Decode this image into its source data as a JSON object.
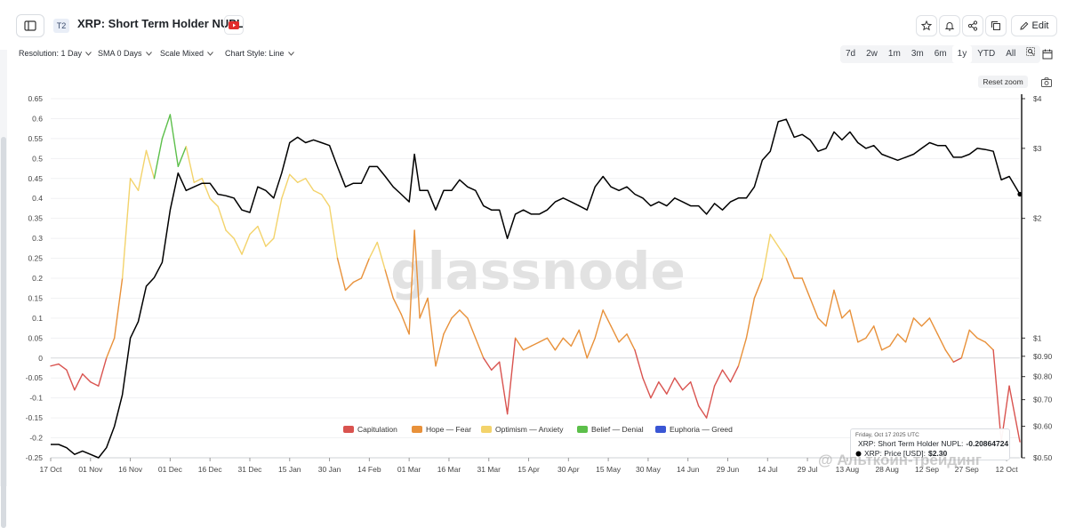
{
  "header": {
    "badge": "T2",
    "title": "XRP: Short Term Holder NUPL",
    "edit_label": "Edit"
  },
  "controls": {
    "resolution": "Resolution: 1 Day",
    "sma": "SMA 0 Days",
    "scale": "Scale Mixed",
    "chart_style": "Chart Style: Line"
  },
  "ranges": [
    "7d",
    "2w",
    "1m",
    "3m",
    "6m",
    "1y",
    "YTD",
    "All"
  ],
  "active_range": "1y",
  "reset_zoom": "Reset zoom",
  "watermark": "glassnode",
  "tooltip": {
    "date": "Friday, Oct 17 2025 UTC",
    "nupl_label": "XRP: Short Term Holder NUPL:",
    "nupl_value": "-0.20864724",
    "price_label": "XRP: Price [USD]:",
    "price_value": "$2.30"
  },
  "corner_watermark": "@ Альткоин-трейдинг",
  "colors": {
    "capitulation": "#d9534f",
    "hope_fear": "#e8913a",
    "optimism_anxiety": "#f3d36b",
    "belief_denial": "#5cbf4a",
    "euphoria_greed": "#3a56d4",
    "price": "#000000"
  },
  "chart_data": {
    "type": "line",
    "left_axis": {
      "min": -0.25,
      "max": 0.65,
      "ticks": [
        "0.65",
        "0.6",
        "0.55",
        "0.5",
        "0.45",
        "0.4",
        "0.35",
        "0.3",
        "0.25",
        "0.2",
        "0.15",
        "0.1",
        "0.05",
        "0",
        "-0.05",
        "-0.1",
        "-0.15",
        "-0.2",
        "-0.25"
      ]
    },
    "right_axis": {
      "scale": "log",
      "ticks": [
        "$4",
        "$3",
        "$2",
        "$1",
        "$0.90",
        "$0.80",
        "$0.70",
        "$0.60",
        "$0.50"
      ]
    },
    "x_ticks": [
      "17 Oct",
      "01 Nov",
      "16 Nov",
      "01 Dec",
      "16 Dec",
      "31 Dec",
      "15 Jan",
      "30 Jan",
      "14 Feb",
      "01 Mar",
      "16 Mar",
      "31 Mar",
      "15 Apr",
      "30 Apr",
      "15 May",
      "30 May",
      "14 Jun",
      "29 Jun",
      "14 Jul",
      "29 Jul",
      "13 Aug",
      "28 Aug",
      "12 Sep",
      "27 Sep",
      "12 Oct"
    ],
    "legend": [
      "Capitulation",
      "Hope — Fear",
      "Optimism — Anxiety",
      "Belief — Denial",
      "Euphoria — Greed"
    ],
    "series": [
      {
        "name": "XRP: Short Term Holder NUPL",
        "points": [
          [
            "2024-10-17",
            -0.02
          ],
          [
            "2024-10-20",
            -0.015
          ],
          [
            "2024-10-23",
            -0.03
          ],
          [
            "2024-10-26",
            -0.08
          ],
          [
            "2024-10-29",
            -0.04
          ],
          [
            "2024-11-01",
            -0.06
          ],
          [
            "2024-11-04",
            -0.07
          ],
          [
            "2024-11-07",
            0.0
          ],
          [
            "2024-11-10",
            0.05
          ],
          [
            "2024-11-13",
            0.2
          ],
          [
            "2024-11-16",
            0.45
          ],
          [
            "2024-11-19",
            0.42
          ],
          [
            "2024-11-22",
            0.52
          ],
          [
            "2024-11-25",
            0.45
          ],
          [
            "2024-11-28",
            0.55
          ],
          [
            "2024-12-01",
            0.61
          ],
          [
            "2024-12-04",
            0.48
          ],
          [
            "2024-12-07",
            0.53
          ],
          [
            "2024-12-10",
            0.44
          ],
          [
            "2024-12-13",
            0.45
          ],
          [
            "2024-12-16",
            0.4
          ],
          [
            "2024-12-19",
            0.38
          ],
          [
            "2024-12-22",
            0.32
          ],
          [
            "2024-12-25",
            0.3
          ],
          [
            "2024-12-28",
            0.26
          ],
          [
            "2024-12-31",
            0.31
          ],
          [
            "2025-01-03",
            0.33
          ],
          [
            "2025-01-06",
            0.28
          ],
          [
            "2025-01-09",
            0.3
          ],
          [
            "2025-01-12",
            0.4
          ],
          [
            "2025-01-15",
            0.46
          ],
          [
            "2025-01-18",
            0.44
          ],
          [
            "2025-01-21",
            0.45
          ],
          [
            "2025-01-24",
            0.42
          ],
          [
            "2025-01-27",
            0.41
          ],
          [
            "2025-01-30",
            0.38
          ],
          [
            "2025-02-02",
            0.25
          ],
          [
            "2025-02-05",
            0.17
          ],
          [
            "2025-02-08",
            0.19
          ],
          [
            "2025-02-11",
            0.2
          ],
          [
            "2025-02-14",
            0.25
          ],
          [
            "2025-02-17",
            0.29
          ],
          [
            "2025-02-20",
            0.22
          ],
          [
            "2025-02-23",
            0.15
          ],
          [
            "2025-02-26",
            0.11
          ],
          [
            "2025-03-01",
            0.06
          ],
          [
            "2025-03-03",
            0.32
          ],
          [
            "2025-03-05",
            0.1
          ],
          [
            "2025-03-08",
            0.15
          ],
          [
            "2025-03-11",
            -0.02
          ],
          [
            "2025-03-14",
            0.06
          ],
          [
            "2025-03-17",
            0.1
          ],
          [
            "2025-03-20",
            0.12
          ],
          [
            "2025-03-23",
            0.1
          ],
          [
            "2025-03-26",
            0.05
          ],
          [
            "2025-03-29",
            0.0
          ],
          [
            "2025-04-01",
            -0.03
          ],
          [
            "2025-04-04",
            -0.01
          ],
          [
            "2025-04-07",
            -0.14
          ],
          [
            "2025-04-10",
            0.05
          ],
          [
            "2025-04-13",
            0.02
          ],
          [
            "2025-04-16",
            0.03
          ],
          [
            "2025-04-19",
            0.04
          ],
          [
            "2025-04-22",
            0.05
          ],
          [
            "2025-04-25",
            0.02
          ],
          [
            "2025-04-28",
            0.05
          ],
          [
            "2025-05-01",
            0.03
          ],
          [
            "2025-05-04",
            0.07
          ],
          [
            "2025-05-07",
            0.0
          ],
          [
            "2025-05-10",
            0.05
          ],
          [
            "2025-05-13",
            0.12
          ],
          [
            "2025-05-16",
            0.08
          ],
          [
            "2025-05-19",
            0.04
          ],
          [
            "2025-05-22",
            0.06
          ],
          [
            "2025-05-25",
            0.02
          ],
          [
            "2025-05-28",
            -0.05
          ],
          [
            "2025-05-31",
            -0.1
          ],
          [
            "2025-06-03",
            -0.06
          ],
          [
            "2025-06-06",
            -0.09
          ],
          [
            "2025-06-09",
            -0.05
          ],
          [
            "2025-06-12",
            -0.08
          ],
          [
            "2025-06-15",
            -0.06
          ],
          [
            "2025-06-18",
            -0.12
          ],
          [
            "2025-06-21",
            -0.15
          ],
          [
            "2025-06-24",
            -0.07
          ],
          [
            "2025-06-27",
            -0.03
          ],
          [
            "2025-06-30",
            -0.06
          ],
          [
            "2025-07-03",
            -0.02
          ],
          [
            "2025-07-06",
            0.05
          ],
          [
            "2025-07-09",
            0.15
          ],
          [
            "2025-07-12",
            0.2
          ],
          [
            "2025-07-15",
            0.31
          ],
          [
            "2025-07-18",
            0.28
          ],
          [
            "2025-07-21",
            0.25
          ],
          [
            "2025-07-24",
            0.2
          ],
          [
            "2025-07-27",
            0.2
          ],
          [
            "2025-07-30",
            0.15
          ],
          [
            "2025-08-02",
            0.1
          ],
          [
            "2025-08-05",
            0.08
          ],
          [
            "2025-08-08",
            0.17
          ],
          [
            "2025-08-11",
            0.1
          ],
          [
            "2025-08-14",
            0.12
          ],
          [
            "2025-08-17",
            0.04
          ],
          [
            "2025-08-20",
            0.05
          ],
          [
            "2025-08-23",
            0.08
          ],
          [
            "2025-08-26",
            0.02
          ],
          [
            "2025-08-29",
            0.03
          ],
          [
            "2025-09-01",
            0.06
          ],
          [
            "2025-09-04",
            0.04
          ],
          [
            "2025-09-07",
            0.1
          ],
          [
            "2025-09-10",
            0.08
          ],
          [
            "2025-09-13",
            0.1
          ],
          [
            "2025-09-16",
            0.06
          ],
          [
            "2025-09-19",
            0.02
          ],
          [
            "2025-09-22",
            -0.01
          ],
          [
            "2025-09-25",
            0.0
          ],
          [
            "2025-09-28",
            0.07
          ],
          [
            "2025-10-01",
            0.05
          ],
          [
            "2025-10-04",
            0.04
          ],
          [
            "2025-10-07",
            0.02
          ],
          [
            "2025-10-10",
            -0.21
          ],
          [
            "2025-10-13",
            -0.07
          ],
          [
            "2025-10-17",
            -0.21
          ]
        ]
      },
      {
        "name": "XRP: Price [USD]",
        "points": [
          [
            "2024-10-17",
            0.54
          ],
          [
            "2024-10-20",
            0.54
          ],
          [
            "2024-10-23",
            0.53
          ],
          [
            "2024-10-26",
            0.51
          ],
          [
            "2024-10-29",
            0.52
          ],
          [
            "2024-11-01",
            0.51
          ],
          [
            "2024-11-04",
            0.5
          ],
          [
            "2024-11-07",
            0.53
          ],
          [
            "2024-11-10",
            0.6
          ],
          [
            "2024-11-13",
            0.72
          ],
          [
            "2024-11-16",
            1.0
          ],
          [
            "2024-11-19",
            1.1
          ],
          [
            "2024-11-22",
            1.35
          ],
          [
            "2024-11-25",
            1.42
          ],
          [
            "2024-11-28",
            1.55
          ],
          [
            "2024-12-01",
            2.1
          ],
          [
            "2024-12-04",
            2.6
          ],
          [
            "2024-12-07",
            2.35
          ],
          [
            "2024-12-10",
            2.4
          ],
          [
            "2024-12-13",
            2.45
          ],
          [
            "2024-12-16",
            2.45
          ],
          [
            "2024-12-19",
            2.3
          ],
          [
            "2024-12-22",
            2.28
          ],
          [
            "2024-12-25",
            2.25
          ],
          [
            "2024-12-28",
            2.1
          ],
          [
            "2024-12-31",
            2.07
          ],
          [
            "2025-01-03",
            2.4
          ],
          [
            "2025-01-06",
            2.35
          ],
          [
            "2025-01-09",
            2.25
          ],
          [
            "2025-01-12",
            2.6
          ],
          [
            "2025-01-15",
            3.1
          ],
          [
            "2025-01-18",
            3.2
          ],
          [
            "2025-01-21",
            3.1
          ],
          [
            "2025-01-24",
            3.15
          ],
          [
            "2025-01-27",
            3.1
          ],
          [
            "2025-01-30",
            3.05
          ],
          [
            "2025-02-02",
            2.7
          ],
          [
            "2025-02-05",
            2.4
          ],
          [
            "2025-02-08",
            2.45
          ],
          [
            "2025-02-11",
            2.45
          ],
          [
            "2025-02-14",
            2.7
          ],
          [
            "2025-02-17",
            2.7
          ],
          [
            "2025-02-20",
            2.55
          ],
          [
            "2025-02-23",
            2.4
          ],
          [
            "2025-02-26",
            2.3
          ],
          [
            "2025-03-01",
            2.2
          ],
          [
            "2025-03-03",
            2.9
          ],
          [
            "2025-03-05",
            2.35
          ],
          [
            "2025-03-08",
            2.35
          ],
          [
            "2025-03-11",
            2.1
          ],
          [
            "2025-03-14",
            2.35
          ],
          [
            "2025-03-17",
            2.35
          ],
          [
            "2025-03-20",
            2.5
          ],
          [
            "2025-03-23",
            2.4
          ],
          [
            "2025-03-26",
            2.35
          ],
          [
            "2025-03-29",
            2.15
          ],
          [
            "2025-04-01",
            2.1
          ],
          [
            "2025-04-04",
            2.1
          ],
          [
            "2025-04-07",
            1.78
          ],
          [
            "2025-04-10",
            2.05
          ],
          [
            "2025-04-13",
            2.1
          ],
          [
            "2025-04-16",
            2.05
          ],
          [
            "2025-04-19",
            2.05
          ],
          [
            "2025-04-22",
            2.1
          ],
          [
            "2025-04-25",
            2.2
          ],
          [
            "2025-04-28",
            2.25
          ],
          [
            "2025-05-01",
            2.2
          ],
          [
            "2025-05-04",
            2.15
          ],
          [
            "2025-05-07",
            2.1
          ],
          [
            "2025-05-10",
            2.4
          ],
          [
            "2025-05-13",
            2.55
          ],
          [
            "2025-05-16",
            2.4
          ],
          [
            "2025-05-19",
            2.35
          ],
          [
            "2025-05-22",
            2.4
          ],
          [
            "2025-05-25",
            2.3
          ],
          [
            "2025-05-28",
            2.25
          ],
          [
            "2025-05-31",
            2.15
          ],
          [
            "2025-06-03",
            2.2
          ],
          [
            "2025-06-06",
            2.15
          ],
          [
            "2025-06-09",
            2.25
          ],
          [
            "2025-06-12",
            2.2
          ],
          [
            "2025-06-15",
            2.15
          ],
          [
            "2025-06-18",
            2.15
          ],
          [
            "2025-06-21",
            2.05
          ],
          [
            "2025-06-24",
            2.18
          ],
          [
            "2025-06-27",
            2.1
          ],
          [
            "2025-06-30",
            2.2
          ],
          [
            "2025-07-03",
            2.25
          ],
          [
            "2025-07-06",
            2.25
          ],
          [
            "2025-07-09",
            2.4
          ],
          [
            "2025-07-12",
            2.8
          ],
          [
            "2025-07-15",
            2.95
          ],
          [
            "2025-07-18",
            3.5
          ],
          [
            "2025-07-21",
            3.55
          ],
          [
            "2025-07-24",
            3.2
          ],
          [
            "2025-07-27",
            3.25
          ],
          [
            "2025-07-30",
            3.15
          ],
          [
            "2025-08-02",
            2.95
          ],
          [
            "2025-08-05",
            3.0
          ],
          [
            "2025-08-08",
            3.3
          ],
          [
            "2025-08-11",
            3.15
          ],
          [
            "2025-08-14",
            3.3
          ],
          [
            "2025-08-17",
            3.1
          ],
          [
            "2025-08-20",
            3.0
          ],
          [
            "2025-08-23",
            3.05
          ],
          [
            "2025-08-26",
            2.9
          ],
          [
            "2025-08-29",
            2.85
          ],
          [
            "2025-09-01",
            2.8
          ],
          [
            "2025-09-04",
            2.85
          ],
          [
            "2025-09-07",
            2.9
          ],
          [
            "2025-09-10",
            3.0
          ],
          [
            "2025-09-13",
            3.1
          ],
          [
            "2025-09-16",
            3.05
          ],
          [
            "2025-09-19",
            3.05
          ],
          [
            "2025-09-22",
            2.85
          ],
          [
            "2025-09-25",
            2.85
          ],
          [
            "2025-09-28",
            2.9
          ],
          [
            "2025-10-01",
            3.0
          ],
          [
            "2025-10-04",
            2.98
          ],
          [
            "2025-10-07",
            2.95
          ],
          [
            "2025-10-10",
            2.5
          ],
          [
            "2025-10-13",
            2.55
          ],
          [
            "2025-10-17",
            2.3
          ]
        ]
      }
    ]
  }
}
